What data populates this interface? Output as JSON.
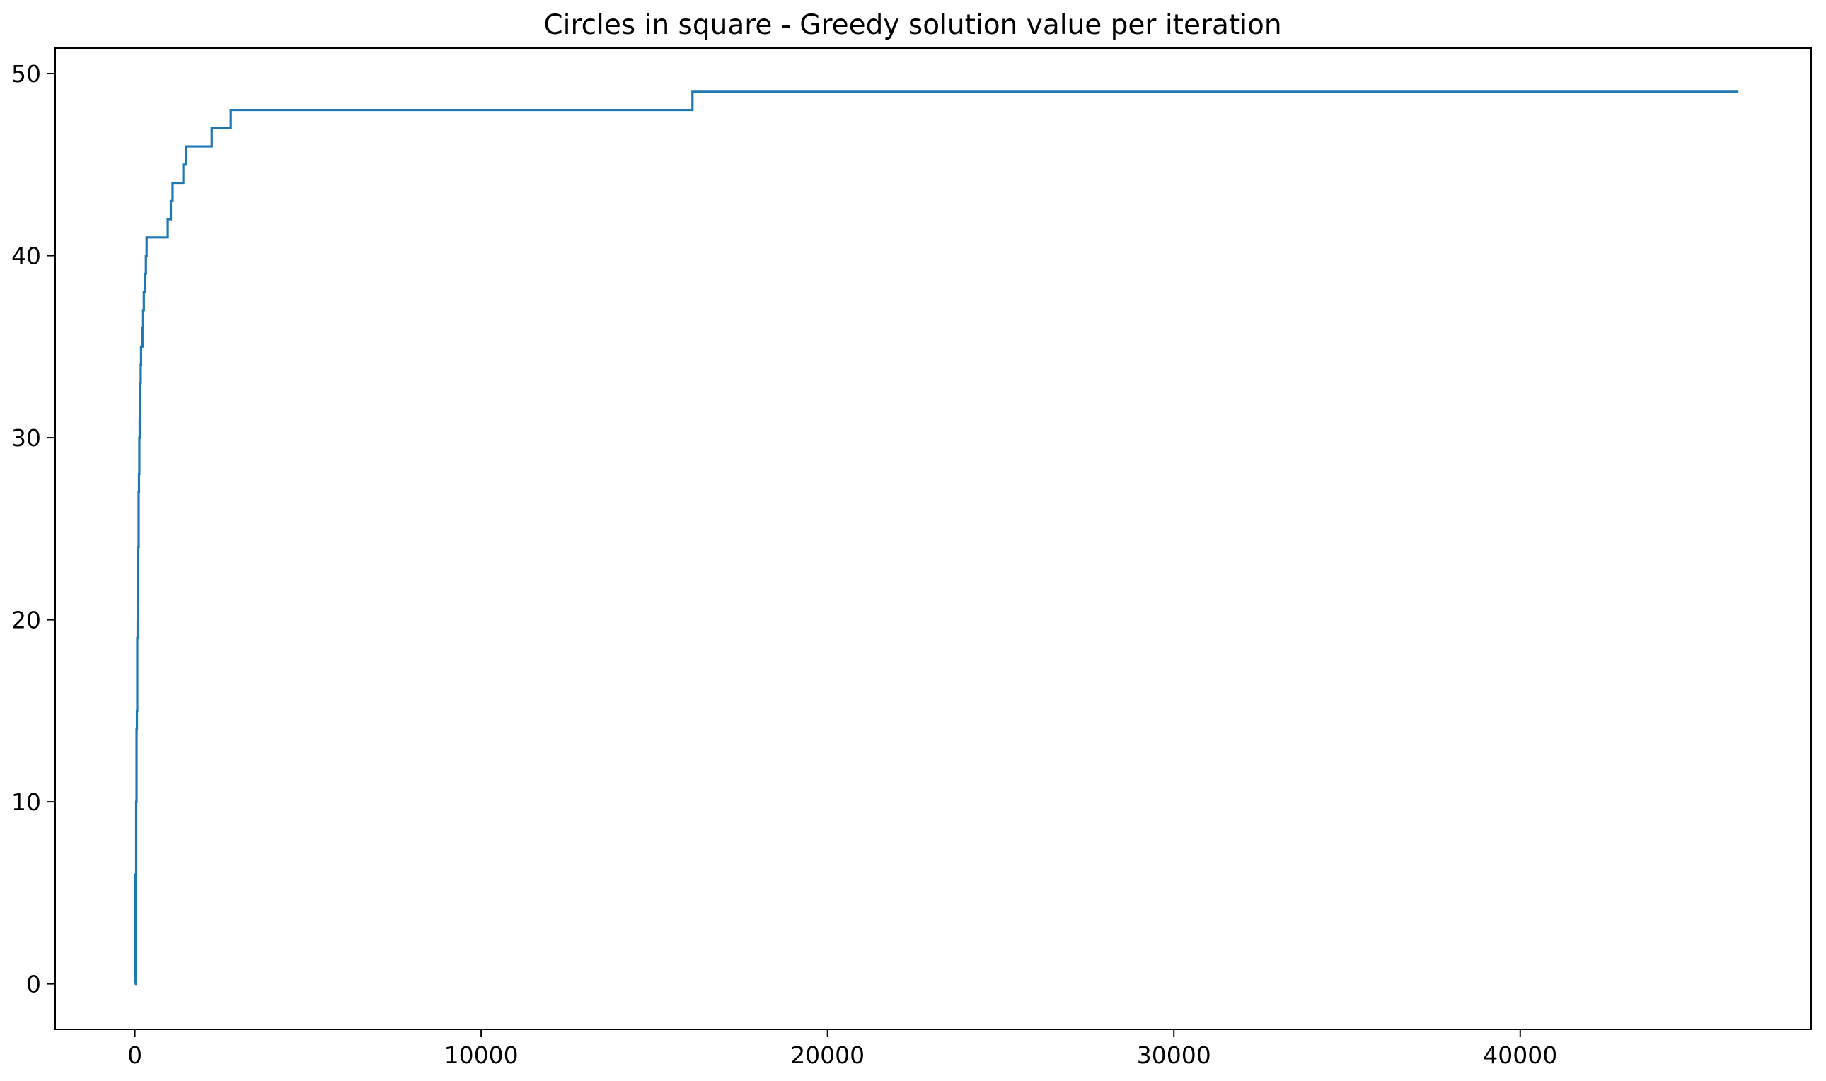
{
  "chart_data": {
    "type": "line",
    "title": "Circles in square - Greedy solution value per iteration",
    "xlabel": "",
    "ylabel": "",
    "xlim": [
      -2300,
      48400
    ],
    "ylim": [
      -2.5,
      51.4
    ],
    "xticks": [
      0,
      10000,
      20000,
      30000,
      40000
    ],
    "xtick_labels": [
      "0",
      "10000",
      "20000",
      "30000",
      "40000"
    ],
    "yticks": [
      0,
      10,
      20,
      30,
      40,
      50
    ],
    "ytick_labels": [
      "0",
      "10",
      "20",
      "30",
      "40",
      "50"
    ],
    "grid": false,
    "legend": "none",
    "series_color": "#1f77b4",
    "step": "post",
    "series": [
      {
        "x": [
          0,
          20,
          40,
          50,
          60,
          70,
          80,
          90,
          100,
          110,
          120,
          130,
          140,
          150,
          160,
          170,
          180,
          200,
          220,
          240,
          260,
          280,
          300,
          320,
          340,
          360,
          950,
          1040,
          1090,
          1150,
          1400,
          1480,
          2220,
          2770,
          16100,
          46300
        ],
        "y": [
          0,
          6,
          10,
          14,
          15,
          19,
          20,
          21,
          24,
          27,
          28,
          30,
          31,
          32,
          33,
          34,
          35,
          35,
          36,
          37,
          38,
          38,
          39,
          40,
          41,
          41,
          42,
          43,
          44,
          44,
          45,
          46,
          47,
          48,
          49,
          49
        ]
      }
    ]
  }
}
